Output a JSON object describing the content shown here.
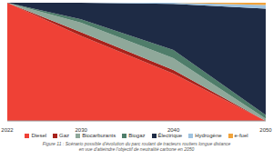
{
  "chart_data": {
    "type": "area",
    "stacked": true,
    "title": "Figure 11 : Scénario possible d'évolution du parc roulant de tracteurs routiers longue distance en vue d'atteindre l'objectif de neutralité carbone en 2050",
    "x": [
      2022,
      2030,
      2040,
      2050
    ],
    "xlim": [
      2022,
      2050
    ],
    "xticks": [
      2022,
      2030,
      2040,
      2050
    ],
    "ylim": [
      0,
      100
    ],
    "tick_labels": "x",
    "grid": false,
    "legend": "bottom",
    "series": [
      {
        "name": "Diesel",
        "color": "#ef4136",
        "values": [
          100,
          72,
          40,
          0
        ]
      },
      {
        "name": "Gaz",
        "color": "#a8221b",
        "values": [
          0,
          3,
          3,
          0
        ]
      },
      {
        "name": "Biocarburants",
        "color": "#8fa89a",
        "values": [
          0,
          8,
          10,
          2
        ]
      },
      {
        "name": "Biogaz",
        "color": "#4f7d6a",
        "values": [
          0,
          3,
          7,
          3
        ]
      },
      {
        "name": "Électrique",
        "color": "#1e2b45",
        "values": [
          0,
          14,
          39,
          90
        ]
      },
      {
        "name": "Hydrogène",
        "color": "#9fc3e0",
        "values": [
          0,
          0,
          1,
          3
        ]
      },
      {
        "name": "e-fuel",
        "color": "#f2a33a",
        "values": [
          0,
          0,
          0,
          2
        ]
      }
    ]
  }
}
